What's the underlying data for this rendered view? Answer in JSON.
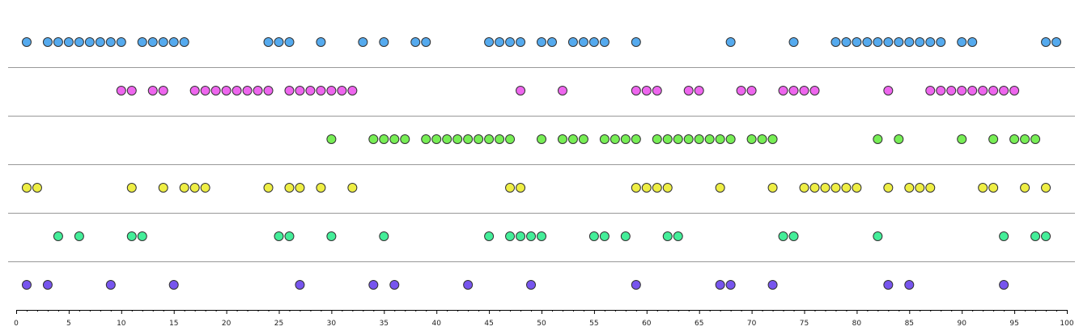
{
  "chart_data": {
    "type": "scatter",
    "title": "",
    "xlabel": "",
    "ylabel": "",
    "xlim": [
      0,
      100
    ],
    "x_ticks": [
      0,
      5,
      10,
      15,
      20,
      25,
      30,
      35,
      40,
      45,
      50,
      55,
      60,
      65,
      70,
      75,
      80,
      85,
      90,
      95,
      100
    ],
    "tick_labels": [
      "0",
      "5",
      "10",
      "15",
      "20",
      "25",
      "30",
      "35",
      "40",
      "45",
      "50",
      "55",
      "60",
      "65",
      "70",
      "75",
      "80",
      "85",
      "90",
      "95",
      "100"
    ],
    "grid": false,
    "legend": "none",
    "row_separator_color": "#999999",
    "axis_color": "#000000",
    "marker_stroke": "#333333",
    "series": [
      {
        "color": "#55aaee",
        "x": [
          1,
          3,
          4,
          5,
          6,
          7,
          8,
          9,
          10,
          12,
          13,
          14,
          15,
          16,
          24,
          25,
          26,
          29,
          33,
          35,
          38,
          39,
          45,
          46,
          47,
          48,
          50,
          51,
          53,
          54,
          55,
          56,
          59,
          68,
          74,
          78,
          79,
          80,
          81,
          82,
          83,
          84,
          85,
          86,
          87,
          88,
          90,
          91,
          98,
          99
        ]
      },
      {
        "color": "#ee66ee",
        "x": [
          10,
          11,
          13,
          14,
          17,
          18,
          19,
          20,
          21,
          22,
          23,
          24,
          26,
          27,
          28,
          29,
          30,
          31,
          32,
          48,
          52,
          59,
          60,
          61,
          64,
          65,
          69,
          70,
          73,
          74,
          75,
          76,
          83,
          87,
          88,
          89,
          90,
          91,
          92,
          93,
          94,
          95
        ]
      },
      {
        "color": "#77ee55",
        "x": [
          30,
          34,
          35,
          36,
          37,
          39,
          40,
          41,
          42,
          43,
          44,
          45,
          46,
          47,
          50,
          52,
          53,
          54,
          56,
          57,
          58,
          59,
          61,
          62,
          63,
          64,
          65,
          66,
          67,
          68,
          70,
          71,
          72,
          82,
          84,
          90,
          93,
          95,
          96,
          97
        ]
      },
      {
        "color": "#eeee44",
        "x": [
          1,
          2,
          11,
          14,
          16,
          17,
          18,
          24,
          26,
          27,
          29,
          32,
          47,
          48,
          59,
          60,
          61,
          62,
          67,
          72,
          75,
          76,
          77,
          78,
          79,
          80,
          83,
          85,
          86,
          87,
          92,
          93,
          96,
          98
        ]
      },
      {
        "color": "#44ee99",
        "x": [
          4,
          6,
          11,
          12,
          25,
          26,
          30,
          35,
          45,
          47,
          48,
          49,
          50,
          55,
          56,
          58,
          62,
          63,
          73,
          74,
          82,
          94,
          97,
          98
        ]
      },
      {
        "color": "#7755ee",
        "x": [
          1,
          3,
          9,
          15,
          27,
          34,
          36,
          43,
          49,
          59,
          67,
          68,
          72,
          83,
          85,
          94
        ]
      }
    ]
  }
}
